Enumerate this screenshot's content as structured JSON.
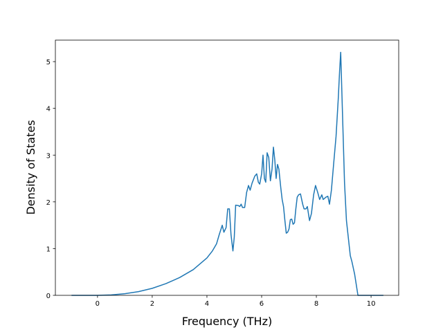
{
  "chart_data": {
    "type": "line",
    "x_label": "Frequency (THz)",
    "y_label": "Density of States",
    "x": [
      -0.95,
      0,
      0.5,
      1,
      1.5,
      2,
      2.5,
      3,
      3.5,
      4,
      4.2,
      4.35,
      4.45,
      4.56,
      4.62,
      4.7,
      4.76,
      4.82,
      4.88,
      4.95,
      5.0,
      5.05,
      5.15,
      5.2,
      5.25,
      5.3,
      5.38,
      5.45,
      5.52,
      5.58,
      5.65,
      5.75,
      5.82,
      5.88,
      5.93,
      6.0,
      6.05,
      6.1,
      6.15,
      6.2,
      6.26,
      6.32,
      6.38,
      6.43,
      6.48,
      6.53,
      6.58,
      6.63,
      6.7,
      6.75,
      6.8,
      6.85,
      6.9,
      6.95,
      7.0,
      7.05,
      7.1,
      7.15,
      7.2,
      7.25,
      7.3,
      7.35,
      7.42,
      7.5,
      7.55,
      7.62,
      7.67,
      7.75,
      7.82,
      7.9,
      7.97,
      8.05,
      8.12,
      8.2,
      8.25,
      8.35,
      8.42,
      8.48,
      8.55,
      8.63,
      8.72,
      8.8,
      8.85,
      8.89,
      8.95,
      9.03,
      9.1,
      9.24,
      9.3,
      9.4,
      9.52,
      10.45
    ],
    "series": [
      {
        "color": "#1f77b4",
        "values": [
          0,
          0,
          0.01,
          0.035,
          0.08,
          0.15,
          0.25,
          0.38,
          0.55,
          0.8,
          0.95,
          1.1,
          1.3,
          1.5,
          1.35,
          1.45,
          1.85,
          1.85,
          1.3,
          0.95,
          1.25,
          1.93,
          1.92,
          1.9,
          1.95,
          1.88,
          1.88,
          2.2,
          2.35,
          2.25,
          2.4,
          2.55,
          2.6,
          2.42,
          2.38,
          2.6,
          3.0,
          2.5,
          2.42,
          3.05,
          2.95,
          2.45,
          2.7,
          3.17,
          2.9,
          2.5,
          2.8,
          2.7,
          2.3,
          2.05,
          1.9,
          1.6,
          1.33,
          1.35,
          1.42,
          1.62,
          1.63,
          1.52,
          1.55,
          1.85,
          2.1,
          2.15,
          2.17,
          1.95,
          1.85,
          1.85,
          1.9,
          1.6,
          1.75,
          2.15,
          2.35,
          2.2,
          2.05,
          2.15,
          2.05,
          2.1,
          2.12,
          1.95,
          2.25,
          2.8,
          3.4,
          4.2,
          4.8,
          5.2,
          4.0,
          2.4,
          1.6,
          0.85,
          0.72,
          0.45,
          0,
          0
        ]
      }
    ],
    "xlim": [
      -1.54,
      11.01
    ],
    "ylim": [
      0,
      5.46
    ],
    "xticks": [
      0,
      2,
      4,
      6,
      8,
      10
    ],
    "yticks": [
      0,
      1,
      2,
      3,
      4,
      5
    ]
  }
}
